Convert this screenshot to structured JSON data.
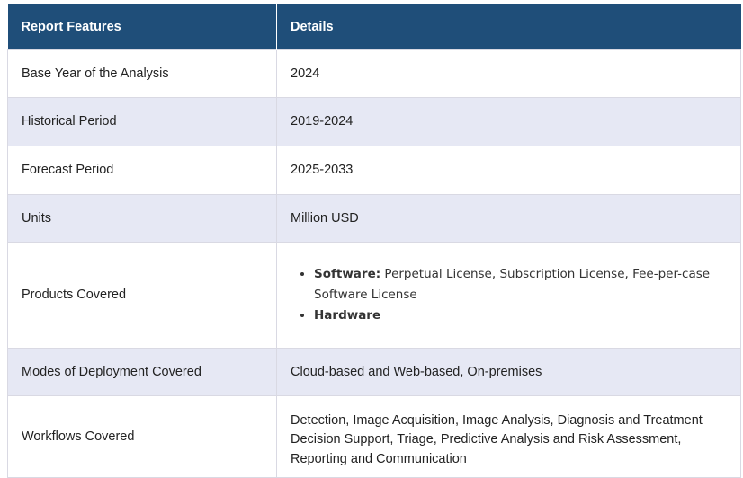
{
  "table": {
    "headers": [
      "Report Features",
      "Details"
    ],
    "rows": [
      {
        "feature": "Base Year of the Analysis",
        "details": "2024"
      },
      {
        "feature": "Historical Period",
        "details": "2019-2024"
      },
      {
        "feature": "Forecast Period",
        "details": "2025-2033"
      },
      {
        "feature": "Units",
        "details": "Million USD"
      },
      {
        "feature": "Products Covered",
        "items": [
          {
            "label": "Software:",
            "text": " Perpetual License, Subscription License, Fee-per-case Software License"
          },
          {
            "label": "Hardware",
            "text": ""
          }
        ]
      },
      {
        "feature": "Modes of Deployment Covered",
        "details": "Cloud-based and Web-based, On-premises"
      },
      {
        "feature": "Workflows Covered",
        "details": "Detection, Image Acquisition, Image Analysis, Diagnosis and Treatment Decision Support, Triage, Predictive Analysis and Risk Assessment, Reporting and Communication"
      }
    ]
  },
  "colors": {
    "header_bg": "#1f4e79",
    "header_text": "#ffffff",
    "row_alt_bg": "#e6e8f4",
    "row_bg": "#ffffff",
    "border": "#d9d9e3"
  }
}
